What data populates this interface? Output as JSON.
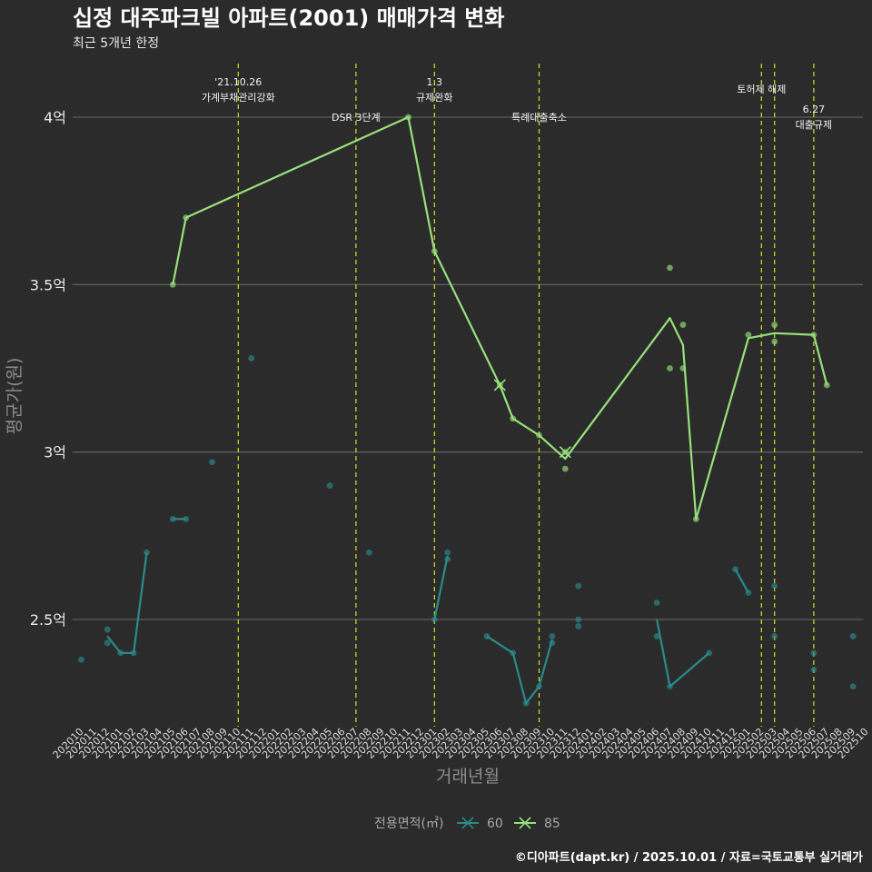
{
  "title": "십정 대주파크빌 아파트(2001) 매매가격 변화",
  "subtitle": "최근 5개년 한정",
  "caption": "©디아파트(dapt.kr) / 2025.10.01 / 자료=국토교통부 실거래가",
  "chart_data": {
    "type": "line",
    "xlabel": "거래년월",
    "ylabel": "평균가(원)",
    "x_categories": [
      "202010",
      "202011",
      "202012",
      "202101",
      "202102",
      "202103",
      "202104",
      "202105",
      "202106",
      "202107",
      "202108",
      "202109",
      "202110",
      "202111",
      "202112",
      "202201",
      "202202",
      "202203",
      "202204",
      "202205",
      "202206",
      "202207",
      "202208",
      "202209",
      "202210",
      "202211",
      "202212",
      "202301",
      "202302",
      "202303",
      "202304",
      "202305",
      "202306",
      "202307",
      "202308",
      "202309",
      "202310",
      "202311",
      "202312",
      "202401",
      "202402",
      "202403",
      "202404",
      "202405",
      "202406",
      "202407",
      "202408",
      "202409",
      "202410",
      "202411",
      "202412",
      "202501",
      "202502",
      "202503",
      "202504",
      "202505",
      "202506",
      "202507",
      "202508",
      "202509",
      "202510"
    ],
    "y_ticks": [
      {
        "value": 2.5,
        "label": "2.5억"
      },
      {
        "value": 3.0,
        "label": "3억"
      },
      {
        "value": 3.5,
        "label": "3.5억"
      },
      {
        "value": 4.0,
        "label": "4억"
      }
    ],
    "ylim": [
      2.18,
      4.16
    ],
    "y_unit": "억",
    "grid": "horizontal",
    "legend": {
      "title": "전용면적(㎡)",
      "position": "bottom"
    },
    "colors": {
      "series_60": "#2a8b8a",
      "series_85": "#97e07c"
    },
    "events": [
      {
        "x": "202110",
        "lines": [
          "'21.10.26",
          "가계부채관리강화"
        ],
        "level": 1
      },
      {
        "x": "202207",
        "lines": [
          "DSR 3단계"
        ],
        "level": 3
      },
      {
        "x": "202301",
        "lines": [
          "1.3",
          "규제완화"
        ],
        "level": 1
      },
      {
        "x": "202309",
        "lines": [
          "특례대출축소"
        ],
        "level": 3
      },
      {
        "x": "202502",
        "lines": [
          "토허제 해제"
        ],
        "level": 2
      },
      {
        "x": "202503",
        "lines": [],
        "level": 0
      },
      {
        "x": "202506",
        "lines": [
          "6.27",
          "대출규제"
        ],
        "level": 4
      }
    ],
    "series": [
      {
        "name": "60",
        "points": [
          {
            "x": 0.0,
            "y": 2.38
          },
          {
            "x": 2.0,
            "y": 2.47
          },
          {
            "x": 2.0,
            "y": 2.43
          },
          {
            "x": 3.0,
            "y": 2.4
          },
          {
            "x": 4.0,
            "y": 2.4
          },
          {
            "x": 5.0,
            "y": 2.7
          },
          {
            "x": 7.0,
            "y": 2.8
          },
          {
            "x": 8.0,
            "y": 2.8
          },
          {
            "x": 10.0,
            "y": 2.97
          },
          {
            "x": 13.0,
            "y": 3.28
          },
          {
            "x": 19.0,
            "y": 2.9
          },
          {
            "x": 22.0,
            "y": 2.7
          },
          {
            "x": 27.0,
            "y": 2.5
          },
          {
            "x": 28.0,
            "y": 2.7
          },
          {
            "x": 28.0,
            "y": 2.68
          },
          {
            "x": 31.0,
            "y": 2.45
          },
          {
            "x": 33.0,
            "y": 2.4
          },
          {
            "x": 34.0,
            "y": 2.25
          },
          {
            "x": 35.0,
            "y": 2.3
          },
          {
            "x": 36.0,
            "y": 2.45
          },
          {
            "x": 36.0,
            "y": 2.43
          },
          {
            "x": 38.0,
            "y": 2.6
          },
          {
            "x": 38.0,
            "y": 2.5
          },
          {
            "x": 38.0,
            "y": 2.48
          },
          {
            "x": 44.0,
            "y": 2.55
          },
          {
            "x": 44.0,
            "y": 2.45
          },
          {
            "x": 45.0,
            "y": 2.3
          },
          {
            "x": 48.0,
            "y": 2.4
          },
          {
            "x": 50.0,
            "y": 2.65
          },
          {
            "x": 51.0,
            "y": 2.58
          },
          {
            "x": 53.0,
            "y": 2.6
          },
          {
            "x": 53.0,
            "y": 2.45
          },
          {
            "x": 56.0,
            "y": 2.4
          },
          {
            "x": 56.0,
            "y": 2.35
          },
          {
            "x": 59.0,
            "y": 2.45
          },
          {
            "x": 59.0,
            "y": 2.3
          }
        ],
        "lines": [
          [
            {
              "x": 2.0,
              "y": 2.45
            },
            {
              "x": 3.0,
              "y": 2.4
            },
            {
              "x": 4.0,
              "y": 2.4
            },
            {
              "x": 5.0,
              "y": 2.7
            }
          ],
          [
            {
              "x": 7.0,
              "y": 2.8
            },
            {
              "x": 8.0,
              "y": 2.8
            }
          ],
          [
            {
              "x": 27.0,
              "y": 2.5
            },
            {
              "x": 28.0,
              "y": 2.69
            }
          ],
          [
            {
              "x": 31.0,
              "y": 2.45
            },
            {
              "x": 33.0,
              "y": 2.4
            },
            {
              "x": 34.0,
              "y": 2.25
            },
            {
              "x": 35.0,
              "y": 2.3
            },
            {
              "x": 36.0,
              "y": 2.44
            }
          ],
          [
            {
              "x": 44.0,
              "y": 2.5
            },
            {
              "x": 45.0,
              "y": 2.3
            },
            {
              "x": 48.0,
              "y": 2.4
            }
          ],
          [
            {
              "x": 50.0,
              "y": 2.65
            },
            {
              "x": 51.0,
              "y": 2.58
            }
          ]
        ],
        "cross_markers": []
      },
      {
        "name": "85",
        "points": [
          {
            "x": 7.0,
            "y": 3.5
          },
          {
            "x": 8.0,
            "y": 3.7
          },
          {
            "x": 25.0,
            "y": 4.0
          },
          {
            "x": 27.0,
            "y": 3.6
          },
          {
            "x": 32.0,
            "y": 3.2
          },
          {
            "x": 33.0,
            "y": 3.1
          },
          {
            "x": 35.0,
            "y": 3.05
          },
          {
            "x": 37.0,
            "y": 2.95
          },
          {
            "x": 37.0,
            "y": 3.0
          },
          {
            "x": 45.0,
            "y": 3.55
          },
          {
            "x": 45.0,
            "y": 3.25
          },
          {
            "x": 46.0,
            "y": 3.38
          },
          {
            "x": 46.0,
            "y": 3.25
          },
          {
            "x": 47.0,
            "y": 2.8
          },
          {
            "x": 51.0,
            "y": 3.35
          },
          {
            "x": 53.0,
            "y": 3.38
          },
          {
            "x": 53.0,
            "y": 3.33
          },
          {
            "x": 56.0,
            "y": 3.35
          },
          {
            "x": 57.0,
            "y": 3.2
          }
        ],
        "lines": [
          [
            {
              "x": 7.0,
              "y": 3.5
            },
            {
              "x": 8.0,
              "y": 3.7
            },
            {
              "x": 25.0,
              "y": 4.0
            },
            {
              "x": 27.0,
              "y": 3.6
            },
            {
              "x": 32.0,
              "y": 3.2
            },
            {
              "x": 33.0,
              "y": 3.1
            },
            {
              "x": 35.0,
              "y": 3.05
            },
            {
              "x": 37.0,
              "y": 2.98
            },
            {
              "x": 45.0,
              "y": 3.4
            },
            {
              "x": 46.0,
              "y": 3.32
            },
            {
              "x": 47.0,
              "y": 2.8
            },
            {
              "x": 51.0,
              "y": 3.34
            },
            {
              "x": 53.0,
              "y": 3.355
            },
            {
              "x": 56.0,
              "y": 3.35
            },
            {
              "x": 57.0,
              "y": 3.2
            }
          ]
        ],
        "cross_markers": [
          {
            "x": 32.0,
            "y": 3.2
          },
          {
            "x": 37.0,
            "y": 3.0
          }
        ]
      }
    ]
  }
}
